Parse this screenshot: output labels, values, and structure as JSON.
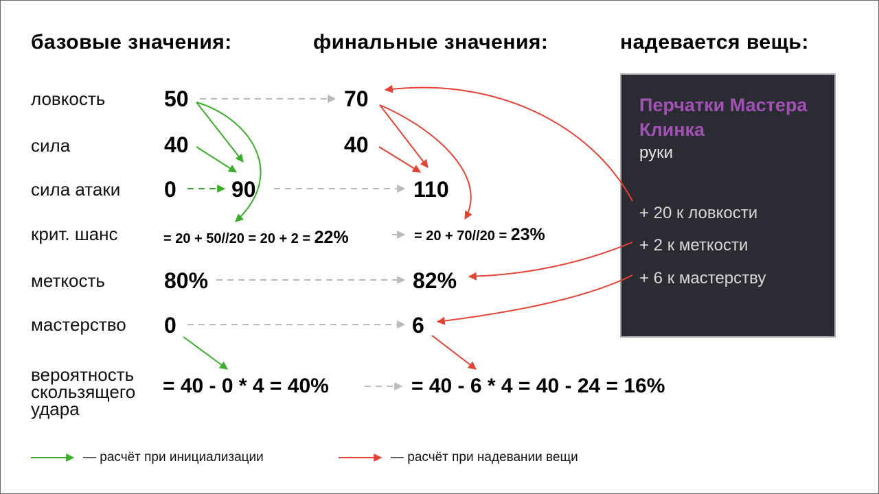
{
  "headings": {
    "base": "базовые значения:",
    "final": "финальные значения:",
    "item": "надевается вещь:"
  },
  "stats": {
    "agility": {
      "label": "ловкость",
      "base": "50",
      "final": "70"
    },
    "strength": {
      "label": "сила",
      "base": "40",
      "final": "40"
    },
    "attack_power": {
      "label": "сила атаки",
      "base_zero": "0",
      "base": "90",
      "final": "110"
    },
    "crit": {
      "label": "крит. шанс",
      "base_formula": "= 20 + 50//20 = 20 + 2 =",
      "base_result": "22%",
      "final_formula": "= 20 + 70//20 =",
      "final_result": "23%"
    },
    "accuracy": {
      "label": "меткость",
      "base": "80%",
      "final": "82%"
    },
    "mastery": {
      "label": "мастерство",
      "base": "0",
      "final": "6"
    },
    "glancing": {
      "label": "вероятность скользящего удара",
      "base_formula": "= 40 - 0 * 4 = 40%",
      "final_formula": "= 40 - 6 * 4 = 40 - 24 = 16%"
    }
  },
  "item": {
    "name": "Перчатки Мастера Клинка",
    "slot": "руки",
    "bonuses": [
      "+ 20 к ловкости",
      "+ 2 к меткости",
      "+ 6 к мастерству"
    ],
    "name_color": "#a251b5",
    "card_color": "#2b2b33"
  },
  "legend": {
    "init": "—  расчёт при инициализации",
    "equip": "—  расчёт при надевании вещи"
  },
  "colors": {
    "green": "#3aae2a",
    "red": "#e34234",
    "gray": "#b9b9b9"
  }
}
